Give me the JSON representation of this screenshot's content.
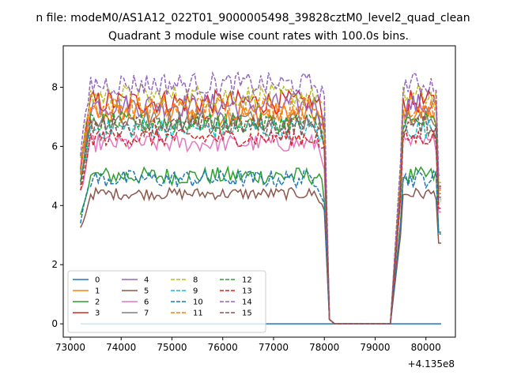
{
  "chart_data": {
    "type": "line",
    "suptitle": "n file: modeM0/AS1A12_022T01_9000005498_39828cztM0_level2_quad_clean",
    "title": "Quadrant 3 module wise count rates with 100.0s bins.",
    "xlabel": "",
    "ylabel": "",
    "x_offset_label": "+4.135e8",
    "xlim": [
      72860,
      80580
    ],
    "ylim": [
      -0.45,
      9.4
    ],
    "x_ticks": [
      73000,
      74000,
      75000,
      76000,
      77000,
      78000,
      79000,
      80000
    ],
    "x_tick_labels": [
      "73000",
      "74000",
      "75000",
      "76000",
      "77000",
      "78000",
      "79000",
      "80000"
    ],
    "y_ticks": [
      0,
      2,
      4,
      6,
      8
    ],
    "y_tick_labels": [
      "0",
      "2",
      "4",
      "6",
      "8"
    ],
    "grid": false,
    "legend_position": "lower-left",
    "segment_a": {
      "x_start": 73200,
      "x_end": 78000
    },
    "segment_b": {
      "x_start": 79300,
      "x_end": 80300
    },
    "drop_x": [
      78100,
      78200
    ],
    "series": [
      {
        "name": "0",
        "color": "#1f77b4",
        "dash": "solid",
        "level": 0.0,
        "noise": 0.0
      },
      {
        "name": "1",
        "color": "#ff7f0e",
        "dash": "solid",
        "level": 7.1,
        "noise": 0.4
      },
      {
        "name": "2",
        "color": "#2ca02c",
        "dash": "solid",
        "level": 5.0,
        "noise": 0.3
      },
      {
        "name": "3",
        "color": "#d62728",
        "dash": "solid",
        "level": 7.5,
        "noise": 0.4
      },
      {
        "name": "4",
        "color": "#9467bd",
        "dash": "solid",
        "level": 7.4,
        "noise": 0.4
      },
      {
        "name": "5",
        "color": "#8c564b",
        "dash": "solid",
        "level": 4.4,
        "noise": 0.2
      },
      {
        "name": "6",
        "color": "#e377c2",
        "dash": "solid",
        "level": 6.1,
        "noise": 0.3
      },
      {
        "name": "7",
        "color": "#7f7f7f",
        "dash": "solid",
        "level": 6.9,
        "noise": 0.35
      },
      {
        "name": "8",
        "color": "#bcbd22",
        "dash": "dashed",
        "level": 7.7,
        "noise": 0.4
      },
      {
        "name": "9",
        "color": "#17becf",
        "dash": "dashed",
        "level": 6.6,
        "noise": 0.35
      },
      {
        "name": "10",
        "color": "#1f77b4",
        "dash": "dashed",
        "level": 4.9,
        "noise": 0.3
      },
      {
        "name": "11",
        "color": "#ff7f0e",
        "dash": "dashed",
        "level": 7.3,
        "noise": 0.4
      },
      {
        "name": "12",
        "color": "#2ca02c",
        "dash": "dashed",
        "level": 6.8,
        "noise": 0.35
      },
      {
        "name": "13",
        "color": "#d62728",
        "dash": "dashed",
        "level": 6.3,
        "noise": 0.3
      },
      {
        "name": "14",
        "color": "#9467bd",
        "dash": "dashed",
        "level": 8.1,
        "noise": 0.4
      },
      {
        "name": "15",
        "color": "#8c564b",
        "dash": "dashed",
        "level": 6.7,
        "noise": 0.35
      }
    ]
  }
}
